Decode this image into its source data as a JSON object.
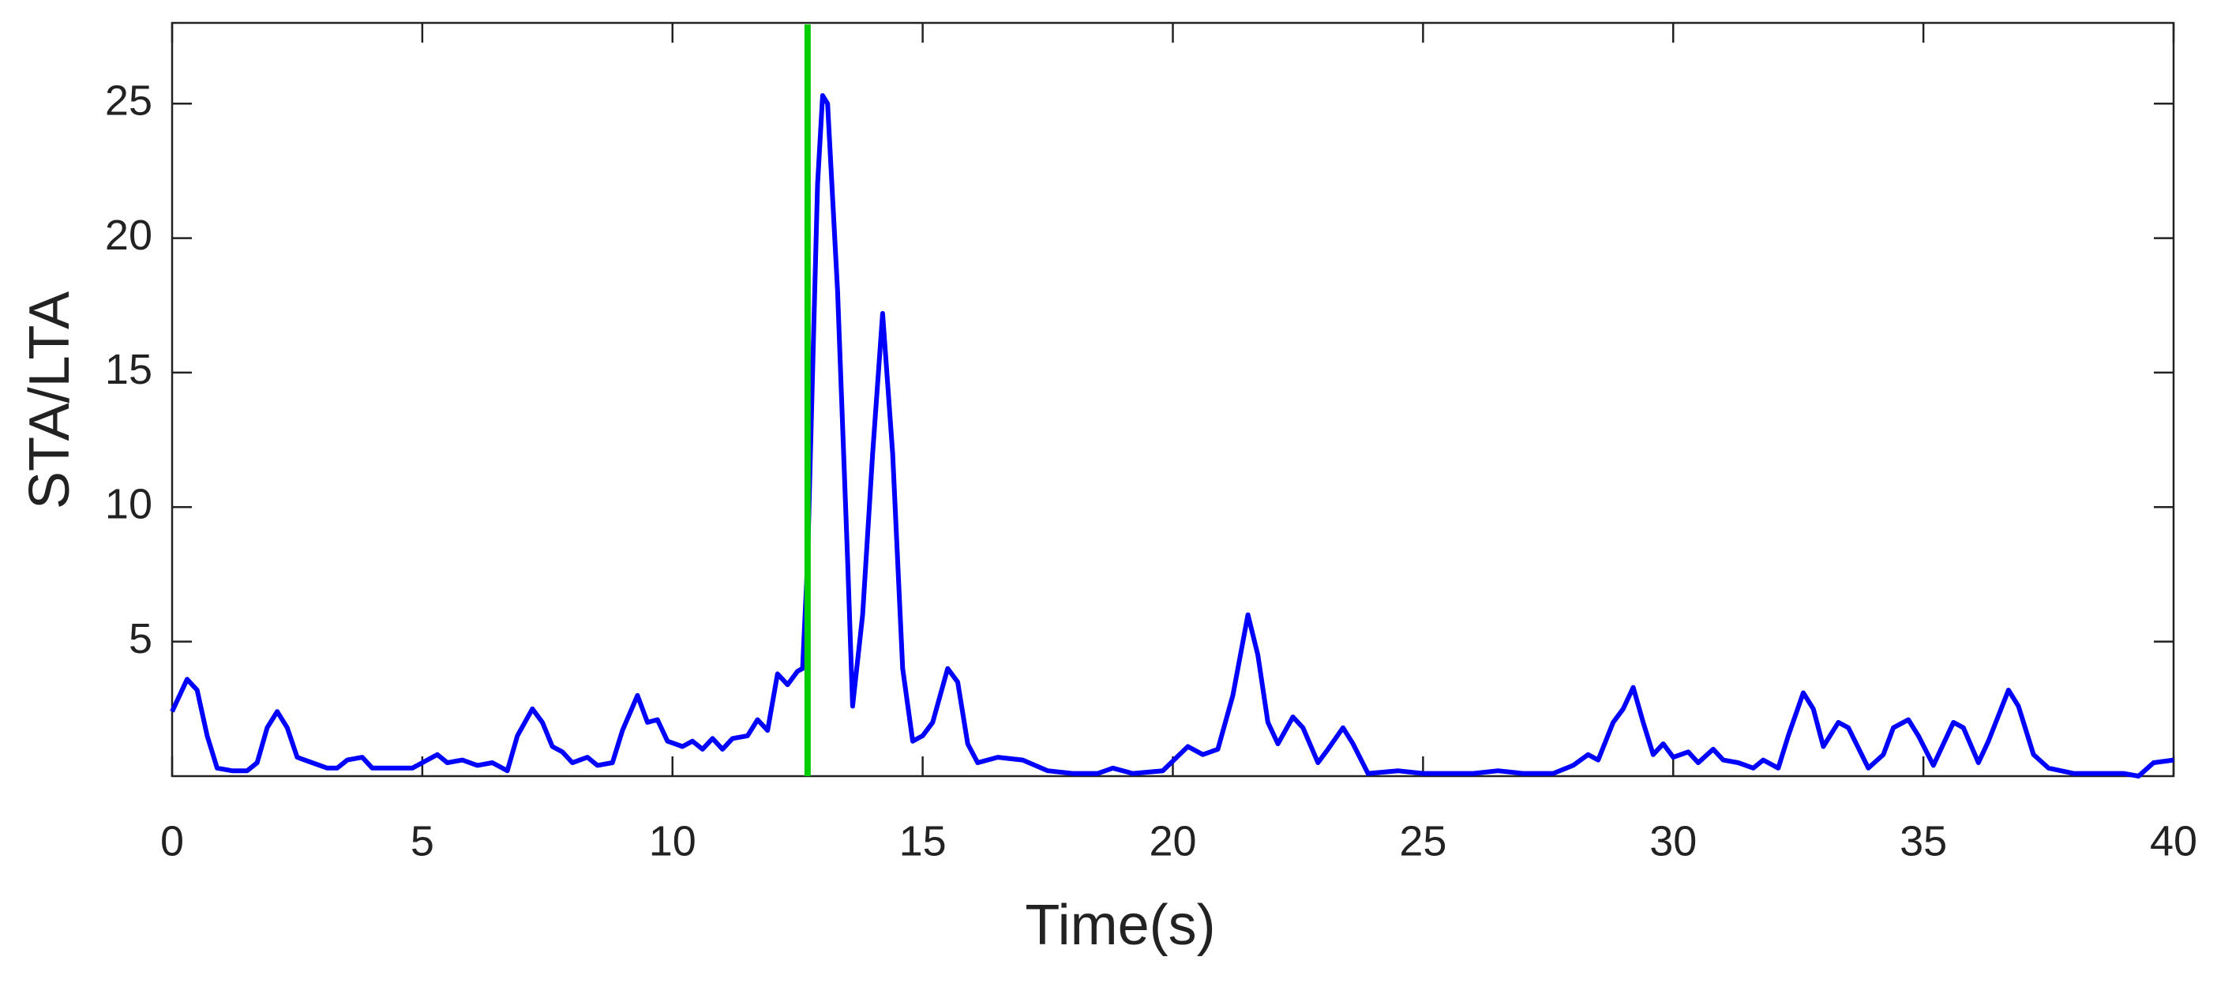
{
  "chart_data": {
    "type": "line",
    "xlabel": "Time(s)",
    "ylabel": "STA/LTA",
    "x": [
      0,
      0.3,
      0.5,
      0.7,
      0.9,
      1.2,
      1.5,
      1.7,
      1.9,
      2.1,
      2.3,
      2.5,
      2.8,
      3.1,
      3.3,
      3.5,
      3.8,
      4.0,
      4.5,
      4.8,
      5.0,
      5.3,
      5.5,
      5.8,
      6.1,
      6.4,
      6.7,
      6.9,
      7.2,
      7.4,
      7.6,
      7.8,
      8.0,
      8.3,
      8.5,
      8.8,
      9.0,
      9.3,
      9.5,
      9.7,
      9.9,
      10.2,
      10.4,
      10.6,
      10.8,
      11.0,
      11.2,
      11.5,
      11.7,
      11.9,
      12.1,
      12.3,
      12.5,
      12.6,
      12.7,
      12.8,
      12.9,
      13.0,
      13.1,
      13.3,
      13.5,
      13.6,
      13.8,
      14.0,
      14.2,
      14.4,
      14.6,
      14.8,
      15.0,
      15.2,
      15.5,
      15.7,
      15.9,
      16.1,
      16.5,
      17.0,
      17.5,
      18.0,
      18.5,
      18.8,
      19.2,
      19.8,
      20.3,
      20.6,
      20.9,
      21.2,
      21.5,
      21.7,
      21.9,
      22.1,
      22.4,
      22.6,
      22.9,
      23.1,
      23.4,
      23.6,
      23.9,
      24.5,
      25.0,
      26.0,
      26.5,
      27.0,
      27.6,
      28.0,
      28.3,
      28.5,
      28.8,
      29.0,
      29.2,
      29.4,
      29.6,
      29.8,
      30.0,
      30.3,
      30.5,
      30.8,
      31.0,
      31.3,
      31.6,
      31.8,
      32.1,
      32.3,
      32.6,
      32.8,
      33.0,
      33.3,
      33.5,
      33.9,
      34.2,
      34.4,
      34.7,
      34.9,
      35.2,
      35.4,
      35.6,
      35.8,
      36.1,
      36.3,
      36.7,
      36.9,
      37.2,
      37.5,
      38.0,
      38.5,
      39.0,
      39.3,
      39.6,
      40
    ],
    "values": [
      2.4,
      3.6,
      3.2,
      1.5,
      0.3,
      0.2,
      0.2,
      0.5,
      1.8,
      2.4,
      1.8,
      0.7,
      0.5,
      0.3,
      0.3,
      0.6,
      0.7,
      0.3,
      0.3,
      0.3,
      0.5,
      0.8,
      0.5,
      0.6,
      0.4,
      0.5,
      0.2,
      1.5,
      2.5,
      2.0,
      1.1,
      0.9,
      0.5,
      0.7,
      0.4,
      0.5,
      1.7,
      3.0,
      2.0,
      2.1,
      1.3,
      1.1,
      1.3,
      1.0,
      1.4,
      1.0,
      1.4,
      1.5,
      2.1,
      1.7,
      3.8,
      3.4,
      3.9,
      4.0,
      8.0,
      15,
      22,
      25.3,
      25,
      18,
      8,
      2.6,
      6,
      12,
      17.2,
      12,
      4,
      1.3,
      1.5,
      2.0,
      4.0,
      3.5,
      1.2,
      0.5,
      0.7,
      0.6,
      0.2,
      0.1,
      0.1,
      0.3,
      0.1,
      0.2,
      1.1,
      0.8,
      1.0,
      3.0,
      6.0,
      4.5,
      2.0,
      1.2,
      2.2,
      1.8,
      0.5,
      1.0,
      1.8,
      1.2,
      0.1,
      0.2,
      0.1,
      0.1,
      0.2,
      0.1,
      0.1,
      0.4,
      0.8,
      0.6,
      2.0,
      2.5,
      3.3,
      2.0,
      0.8,
      1.2,
      0.7,
      0.9,
      0.5,
      1.0,
      0.6,
      0.5,
      0.3,
      0.6,
      0.3,
      1.5,
      3.1,
      2.5,
      1.1,
      2.0,
      1.8,
      0.3,
      0.8,
      1.8,
      2.1,
      1.5,
      0.4,
      1.2,
      2.0,
      1.8,
      0.5,
      1.3,
      3.2,
      2.6,
      0.8,
      0.3,
      0.1,
      0.1,
      0.1,
      0.0,
      0.5,
      0.6
    ],
    "color": "#0000ff",
    "xlim": [
      0,
      40
    ],
    "ylim": [
      0,
      28
    ],
    "xticks": [
      0,
      5,
      10,
      15,
      20,
      25,
      30,
      35,
      40
    ],
    "yticks": [
      5,
      10,
      15,
      20,
      25
    ],
    "vline": {
      "x": 12.7,
      "color": "#00cc00"
    }
  }
}
